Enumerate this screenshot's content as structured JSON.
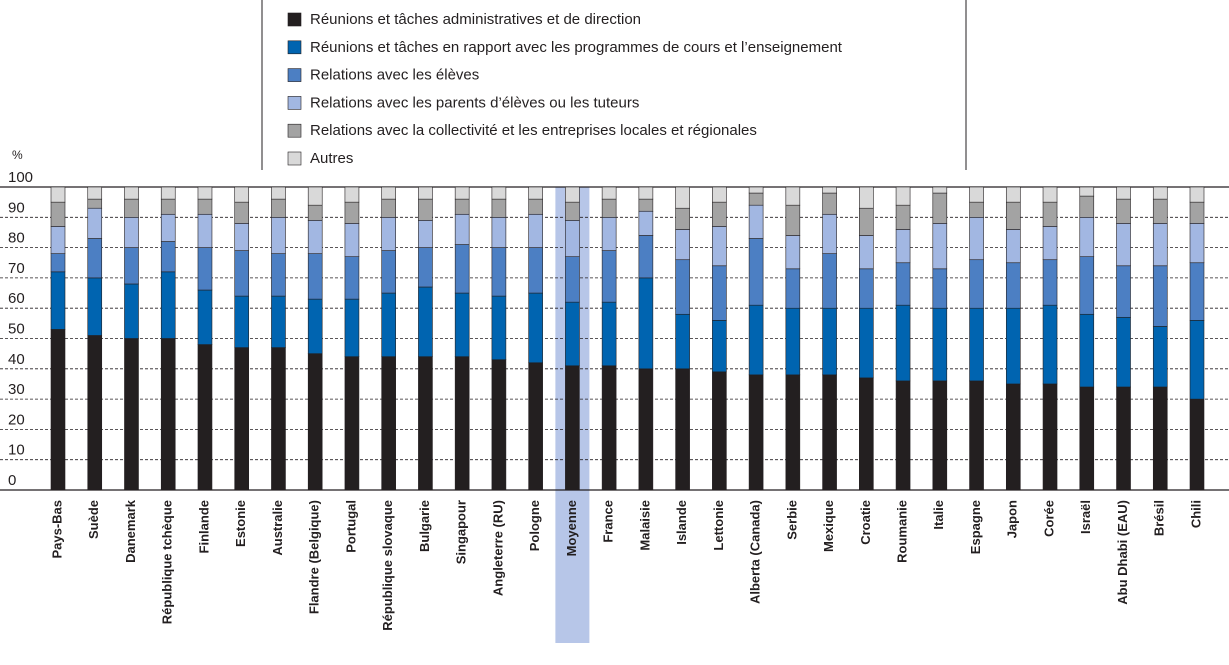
{
  "chart_data": {
    "type": "stacked_bar",
    "y_label": "%",
    "categories": [
      "Pays-Bas",
      "Suède",
      "Danemark",
      "République tchèque",
      "Finlande",
      "Estonie",
      "Australie",
      "Flandre (Belgique)",
      "Portugal",
      "République slovaque",
      "Bulgarie",
      "Singapour",
      "Angleterre (RU)",
      "Pologne",
      "Moyenne",
      "France",
      "Malaisie",
      "Islande",
      "Lettonie",
      "Alberta (Canada)",
      "Serbie",
      "Mexique",
      "Croatie",
      "Roumanie",
      "Italie",
      "Espagne",
      "Japon",
      "Corée",
      "Israël",
      "Abu Dhabi (EAU)",
      "Brésil",
      "Chili"
    ],
    "highlight": "Moyenne",
    "series": [
      {
        "name": "Réunions et tâches administratives et de direction",
        "color": "#231f20",
        "values": [
          53,
          51,
          50,
          50,
          48,
          47,
          47,
          45,
          44,
          44,
          44,
          44,
          43,
          42,
          41,
          41,
          40,
          40,
          39,
          38,
          38,
          38,
          37,
          36,
          36,
          36,
          35,
          35,
          34,
          34,
          34,
          30
        ]
      },
      {
        "name": "Réunions et tâches en rapport avec les programmes de cours et l’enseignement",
        "color": "#0064b0",
        "values": [
          19,
          19,
          18,
          22,
          18,
          17,
          17,
          18,
          19,
          21,
          23,
          21,
          21,
          23,
          21,
          21,
          30,
          18,
          17,
          23,
          22,
          22,
          23,
          25,
          24,
          24,
          25,
          26,
          24,
          23,
          20,
          26
        ]
      },
      {
        "name": "Relations avec les élèves",
        "color": "#4c7fc3",
        "values": [
          6,
          13,
          12,
          10,
          14,
          15,
          14,
          15,
          14,
          14,
          13,
          16,
          16,
          15,
          15,
          17,
          14,
          18,
          18,
          22,
          13,
          18,
          13,
          14,
          13,
          16,
          15,
          15,
          19,
          17,
          20,
          19
        ]
      },
      {
        "name": "Relations avec les parents d’élèves ou les tuteurs",
        "color": "#a2b7e2",
        "values": [
          9,
          10,
          10,
          9,
          11,
          9,
          12,
          11,
          11,
          11,
          9,
          10,
          10,
          11,
          12,
          11,
          8,
          10,
          13,
          11,
          11,
          13,
          11,
          11,
          15,
          14,
          11,
          11,
          13,
          14,
          14,
          13
        ]
      },
      {
        "name": "Relations avec la collectivité et les entreprises locales et régionales",
        "color": "#a3a3a3",
        "values": [
          8,
          3,
          6,
          5,
          5,
          7,
          6,
          5,
          7,
          6,
          7,
          5,
          6,
          5,
          6,
          6,
          4,
          7,
          8,
          4,
          10,
          7,
          9,
          8,
          10,
          5,
          9,
          8,
          7,
          8,
          8,
          7
        ]
      },
      {
        "name": "Autres",
        "color": "#d9d9d9",
        "values": [
          5,
          4,
          4,
          4,
          4,
          5,
          4,
          6,
          5,
          4,
          4,
          4,
          4,
          4,
          5,
          4,
          4,
          7,
          5,
          2,
          6,
          2,
          7,
          6,
          2,
          5,
          5,
          5,
          3,
          4,
          4,
          5
        ]
      }
    ],
    "ylim": [
      0,
      100
    ],
    "yticks": [
      0,
      10,
      20,
      30,
      40,
      50,
      60,
      70,
      80,
      90,
      100
    ],
    "grid": true
  }
}
